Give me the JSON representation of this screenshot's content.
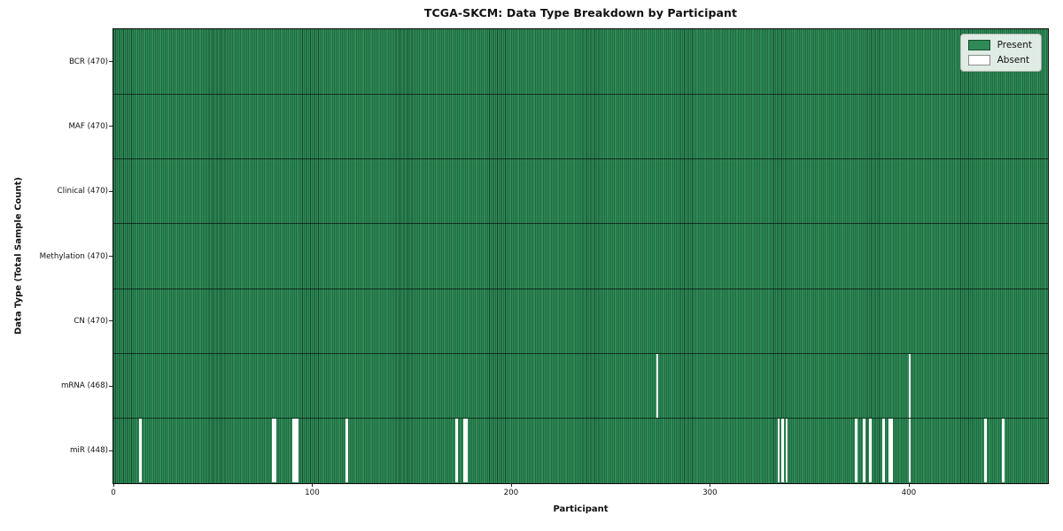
{
  "chart_data": {
    "type": "heatmap",
    "title": "TCGA-SKCM: Data Type Breakdown by Participant",
    "xlabel": "Participant",
    "ylabel": "Data Type (Total Sample Count)",
    "xlim": [
      0,
      470
    ],
    "n_participants": 470,
    "x_ticks": [
      0,
      100,
      200,
      300,
      400
    ],
    "grid": false,
    "legend": {
      "position": "upper-right",
      "entries": [
        {
          "label": "Present",
          "color": "#2e8b57"
        },
        {
          "label": "Absent",
          "color": "#ffffff"
        }
      ]
    },
    "colors": {
      "present": "#2e8b57",
      "absent": "#ffffff",
      "bar_edge": "#0a2214",
      "plot_border": "#0d0d0d"
    },
    "rows": [
      {
        "label": "BCR (470)",
        "data_type": "BCR",
        "present_count": 470,
        "absent_participants": []
      },
      {
        "label": "MAF (470)",
        "data_type": "MAF",
        "present_count": 470,
        "absent_participants": []
      },
      {
        "label": "Clinical (470)",
        "data_type": "Clinical",
        "present_count": 470,
        "absent_participants": []
      },
      {
        "label": "Methylation (470)",
        "data_type": "Methylation",
        "present_count": 470,
        "absent_participants": []
      },
      {
        "label": "CN (470)",
        "data_type": "CN",
        "present_count": 470,
        "absent_participants": []
      },
      {
        "label": "mRNA (468)",
        "data_type": "mRNA",
        "present_count": 468,
        "absent_participants": [
          273,
          400
        ]
      },
      {
        "label": "miR (448)",
        "data_type": "miR",
        "present_count": 448,
        "absent_participants": [
          13,
          80,
          81,
          90,
          91,
          92,
          117,
          172,
          176,
          177,
          334,
          336,
          338,
          373,
          377,
          380,
          387,
          390,
          391,
          400,
          438,
          447
        ]
      }
    ]
  }
}
